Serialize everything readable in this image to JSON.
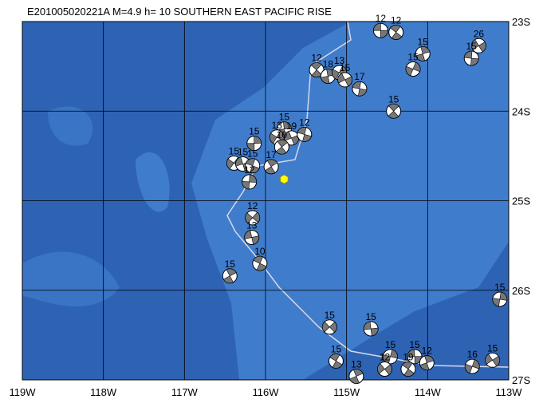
{
  "map": {
    "title": "E201005020221A M=4.9 h= 10 SOUTHERN EAST PACIFIC RISE",
    "xlim": [
      -119,
      -113
    ],
    "ylim": [
      -27,
      -23
    ],
    "xticks": [
      {
        "value": -119,
        "label": "119W"
      },
      {
        "value": -118,
        "label": "118W"
      },
      {
        "value": -117,
        "label": "117W"
      },
      {
        "value": -116,
        "label": "116W"
      },
      {
        "value": -115,
        "label": "115W"
      },
      {
        "value": -114,
        "label": "114W"
      },
      {
        "value": -113,
        "label": "113W"
      }
    ],
    "yticks": [
      {
        "value": -23,
        "label": "23S"
      },
      {
        "value": -24,
        "label": "24S"
      },
      {
        "value": -25,
        "label": "25S"
      },
      {
        "value": -26,
        "label": "26S"
      },
      {
        "value": -27,
        "label": "27S"
      }
    ],
    "epicenter": {
      "lon": -115.77,
      "lat": -24.76
    },
    "events": [
      {
        "lon": -114.58,
        "lat": -23.1,
        "depth": 12
      },
      {
        "lon": -114.39,
        "lat": -23.12,
        "depth": 12
      },
      {
        "lon": -114.06,
        "lat": -23.36,
        "depth": 15
      },
      {
        "lon": -114.18,
        "lat": -23.53,
        "depth": 15
      },
      {
        "lon": -113.37,
        "lat": -23.27,
        "depth": 26
      },
      {
        "lon": -113.46,
        "lat": -23.41,
        "depth": 15
      },
      {
        "lon": -115.37,
        "lat": -23.54,
        "depth": 12
      },
      {
        "lon": -115.23,
        "lat": -23.61,
        "depth": 18
      },
      {
        "lon": -115.09,
        "lat": -23.57,
        "depth": 13
      },
      {
        "lon": -115.02,
        "lat": -23.65,
        "depth": 15
      },
      {
        "lon": -114.84,
        "lat": -23.75,
        "depth": 17
      },
      {
        "lon": -114.42,
        "lat": -24.0,
        "depth": 15
      },
      {
        "lon": -115.77,
        "lat": -24.2,
        "depth": 15
      },
      {
        "lon": -115.86,
        "lat": -24.29,
        "depth": 13
      },
      {
        "lon": -115.68,
        "lat": -24.3,
        "depth": 19
      },
      {
        "lon": -115.52,
        "lat": -24.26,
        "depth": 12
      },
      {
        "lon": -115.8,
        "lat": -24.4,
        "depth": 10
      },
      {
        "lon": -116.14,
        "lat": -24.36,
        "depth": 15
      },
      {
        "lon": -116.39,
        "lat": -24.58,
        "depth": 15
      },
      {
        "lon": -116.28,
        "lat": -24.59,
        "depth": 15
      },
      {
        "lon": -116.16,
        "lat": -24.61,
        "depth": 15
      },
      {
        "lon": -115.93,
        "lat": -24.62,
        "depth": 17
      },
      {
        "lon": -116.2,
        "lat": -24.79,
        "depth": 12
      },
      {
        "lon": -116.16,
        "lat": -25.19,
        "depth": 12
      },
      {
        "lon": -116.17,
        "lat": -25.41,
        "depth": 13
      },
      {
        "lon": -116.07,
        "lat": -25.7,
        "depth": 10
      },
      {
        "lon": -116.44,
        "lat": -25.84,
        "depth": 15
      },
      {
        "lon": -113.11,
        "lat": -26.1,
        "depth": 15
      },
      {
        "lon": -115.21,
        "lat": -26.41,
        "depth": 15
      },
      {
        "lon": -114.7,
        "lat": -26.43,
        "depth": 15
      },
      {
        "lon": -115.13,
        "lat": -26.79,
        "depth": 15
      },
      {
        "lon": -114.88,
        "lat": -26.96,
        "depth": 13
      },
      {
        "lon": -114.46,
        "lat": -26.74,
        "depth": 15
      },
      {
        "lon": -114.53,
        "lat": -26.88,
        "depth": 12
      },
      {
        "lon": -114.16,
        "lat": -26.74,
        "depth": 15
      },
      {
        "lon": -114.24,
        "lat": -26.88,
        "depth": 19
      },
      {
        "lon": -114.01,
        "lat": -26.81,
        "depth": 12
      },
      {
        "lon": -113.45,
        "lat": -26.85,
        "depth": 16
      },
      {
        "lon": -113.2,
        "lat": -26.78,
        "depth": 15
      }
    ]
  }
}
